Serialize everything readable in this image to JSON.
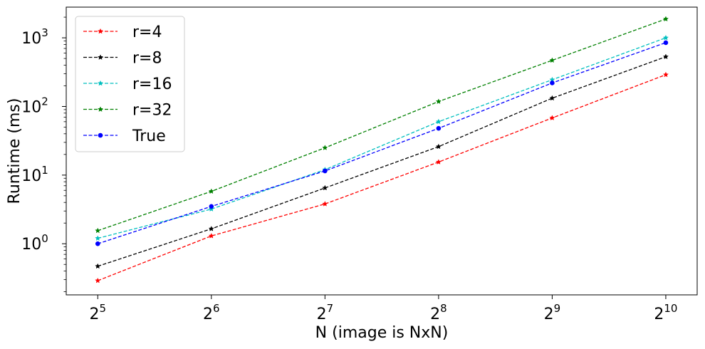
{
  "chart_data": {
    "type": "line",
    "title": "",
    "xlabel": "N (image is NxN)",
    "ylabel": "Runtime (ms)",
    "x": [
      32,
      64,
      128,
      256,
      512,
      1024
    ],
    "x_scale": "log2",
    "y_scale": "log10",
    "xlim": [
      26.4,
      1240
    ],
    "ylim": [
      0.18,
      2800
    ],
    "x_ticks": [
      {
        "value": 32,
        "base": "2",
        "exp": "5"
      },
      {
        "value": 64,
        "base": "2",
        "exp": "6"
      },
      {
        "value": 128,
        "base": "2",
        "exp": "7"
      },
      {
        "value": 256,
        "base": "2",
        "exp": "8"
      },
      {
        "value": 512,
        "base": "2",
        "exp": "9"
      },
      {
        "value": 1024,
        "base": "2",
        "exp": "10"
      }
    ],
    "y_ticks": [
      {
        "value": 1,
        "base": "10",
        "exp": "0"
      },
      {
        "value": 10,
        "base": "10",
        "exp": "1"
      },
      {
        "value": 100,
        "base": "10",
        "exp": "2"
      },
      {
        "value": 1000,
        "base": "10",
        "exp": "3"
      }
    ],
    "grid": false,
    "legend_position": "top-left",
    "series": [
      {
        "name": "r=4",
        "color": "#ff0000",
        "marker": "star",
        "values": [
          0.29,
          1.3,
          3.8,
          15.5,
          68,
          290
        ]
      },
      {
        "name": "r=8",
        "color": "#000000",
        "marker": "star",
        "values": [
          0.47,
          1.65,
          6.5,
          26,
          132,
          530
        ]
      },
      {
        "name": "r=16",
        "color": "#00bfbf",
        "marker": "star",
        "values": [
          1.2,
          3.2,
          12,
          60,
          245,
          1000
        ]
      },
      {
        "name": "r=32",
        "color": "#008000",
        "marker": "star",
        "values": [
          1.55,
          5.8,
          25,
          118,
          470,
          1880
        ]
      },
      {
        "name": "True",
        "color": "#0000ff",
        "marker": "circle",
        "values": [
          1.0,
          3.5,
          11.5,
          48,
          220,
          850
        ]
      }
    ]
  }
}
